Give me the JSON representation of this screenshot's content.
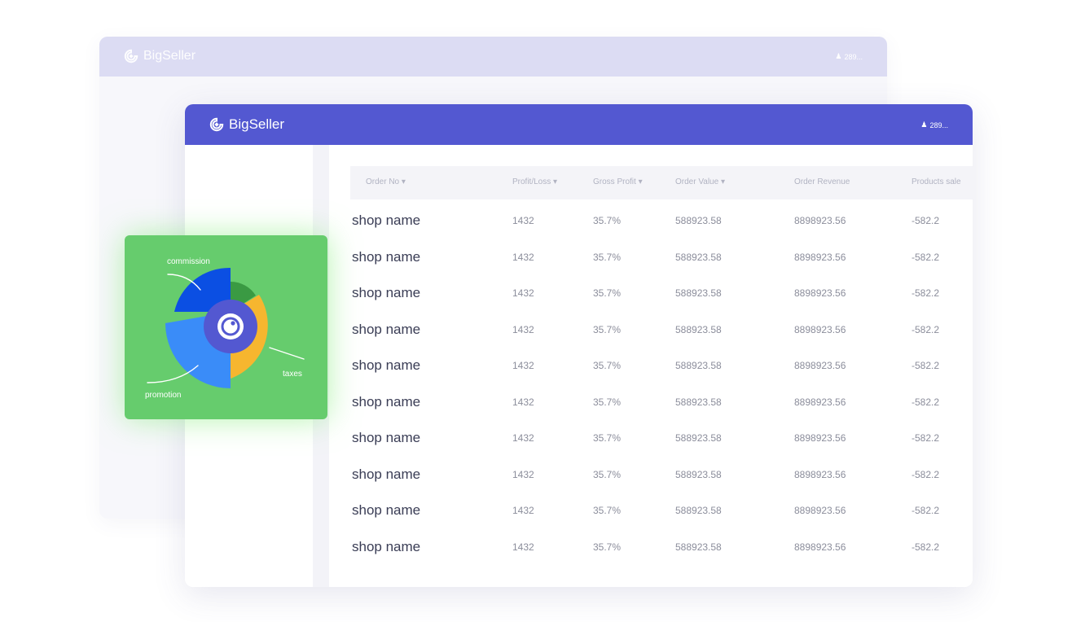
{
  "back_window": {
    "brand": "BigSeller",
    "user": "289..."
  },
  "front_window": {
    "brand": "BigSeller",
    "user": "289..."
  },
  "table": {
    "headers": [
      "Order No ▾",
      "Profit/Loss ▾",
      "Gross Profit ▾",
      "Order Value ▾",
      "Order Revenue",
      "Products sale"
    ],
    "rows": [
      [
        "shop name",
        "1432",
        "35.7%",
        "588923.58",
        "8898923.56",
        "-582.2"
      ],
      [
        "shop name",
        "1432",
        "35.7%",
        "588923.58",
        "8898923.56",
        "-582.2"
      ],
      [
        "shop name",
        "1432",
        "35.7%",
        "588923.58",
        "8898923.56",
        "-582.2"
      ],
      [
        "shop name",
        "1432",
        "35.7%",
        "588923.58",
        "8898923.56",
        "-582.2"
      ],
      [
        "shop name",
        "1432",
        "35.7%",
        "588923.58",
        "8898923.56",
        "-582.2"
      ],
      [
        "shop name",
        "1432",
        "35.7%",
        "588923.58",
        "8898923.56",
        "-582.2"
      ],
      [
        "shop name",
        "1432",
        "35.7%",
        "588923.58",
        "8898923.56",
        "-582.2"
      ],
      [
        "shop name",
        "1432",
        "35.7%",
        "588923.58",
        "8898923.56",
        "-582.2"
      ],
      [
        "shop name",
        "1432",
        "35.7%",
        "588923.58",
        "8898923.56",
        "-582.2"
      ],
      [
        "shop name",
        "1432",
        "35.7%",
        "588923.58",
        "8898923.56",
        "-582.2"
      ]
    ]
  },
  "chart_card": {
    "labels": {
      "commission": "commission",
      "taxes": "taxes",
      "promotion": "promotion"
    },
    "colors": {
      "card": "#66cc6d",
      "commission": "#0b4fe3",
      "promotion": "#3a8cf8",
      "taxes": "#f6b62f",
      "dark_green": "#3a9a43",
      "center": "#5358d1"
    },
    "center_icon": "target-icon"
  },
  "icons": {
    "brand": "bigseller-logo-icon",
    "user": "user-icon"
  },
  "colors": {
    "header_primary": "#5358d1",
    "header_faded": "#dcdcf3"
  }
}
